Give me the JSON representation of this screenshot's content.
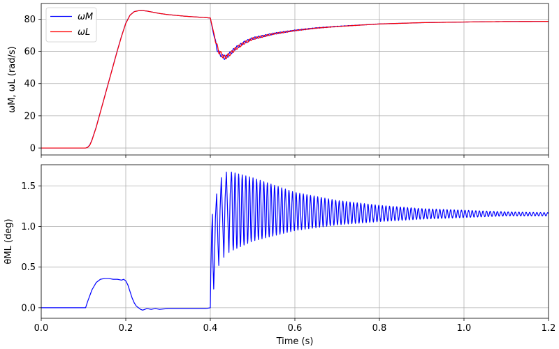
{
  "colors": {
    "omega_M": "#0000ff",
    "omega_L": "#ff0000",
    "theta_ML": "#0000ff",
    "grid": "#b0b0b0"
  },
  "chart_data": [
    {
      "type": "line",
      "ylabel": "ωM, ωL (rad/s)",
      "xlabel": "",
      "xlim": [
        0.0,
        1.2
      ],
      "ylim": [
        -4.3,
        89.7
      ],
      "xticks": [
        0.0,
        0.2,
        0.4,
        0.6,
        0.8,
        1.0,
        1.2
      ],
      "yticks": [
        0,
        20,
        40,
        60,
        80
      ],
      "ytick_labels": [
        "0",
        "20",
        "40",
        "60",
        "80"
      ],
      "grid": true,
      "legend_position": "top-left",
      "series": [
        {
          "name": "ωM",
          "color": "#0000ff",
          "x": [
            0.0,
            0.105,
            0.11,
            0.115,
            0.12,
            0.13,
            0.14,
            0.15,
            0.16,
            0.17,
            0.18,
            0.19,
            0.2,
            0.21,
            0.22,
            0.23,
            0.24,
            0.25,
            0.26,
            0.28,
            0.3,
            0.34,
            0.38,
            0.4,
            0.405,
            0.41,
            0.415,
            0.42,
            0.425,
            0.43,
            0.435,
            0.44,
            0.45,
            0.46,
            0.48,
            0.5,
            0.55,
            0.6,
            0.65,
            0.7,
            0.8,
            0.9,
            1.0,
            1.1,
            1.2
          ],
          "y": [
            0.0,
            0.0,
            0.5,
            2.0,
            5.0,
            13.0,
            22.5,
            32.0,
            41.5,
            51.0,
            60.5,
            69.5,
            77.5,
            82.5,
            84.7,
            85.2,
            85.3,
            85.0,
            84.5,
            83.5,
            82.8,
            81.8,
            81.1,
            80.7,
            74.0,
            68.0,
            62.5,
            59.0,
            58.0,
            56.5,
            56.0,
            57.0,
            59.5,
            62.0,
            65.5,
            68.0,
            71.0,
            73.0,
            74.5,
            75.5,
            77.0,
            77.8,
            78.2,
            78.5,
            78.6
          ]
        },
        {
          "name": "ωL",
          "color": "#ff0000",
          "x": [
            0.0,
            0.105,
            0.11,
            0.115,
            0.12,
            0.13,
            0.14,
            0.15,
            0.16,
            0.17,
            0.18,
            0.19,
            0.2,
            0.21,
            0.22,
            0.23,
            0.24,
            0.25,
            0.26,
            0.28,
            0.3,
            0.34,
            0.38,
            0.4,
            0.405,
            0.41,
            0.415,
            0.42,
            0.425,
            0.43,
            0.435,
            0.44,
            0.45,
            0.46,
            0.48,
            0.5,
            0.55,
            0.6,
            0.65,
            0.7,
            0.8,
            0.9,
            1.0,
            1.1,
            1.2
          ],
          "y": [
            0.0,
            0.0,
            0.4,
            1.8,
            4.8,
            12.8,
            22.3,
            31.8,
            41.3,
            50.8,
            60.3,
            69.3,
            77.3,
            82.4,
            84.6,
            85.2,
            85.3,
            85.0,
            84.5,
            83.5,
            82.8,
            81.8,
            81.1,
            80.7,
            75.0,
            69.5,
            64.0,
            60.0,
            58.5,
            57.0,
            56.2,
            57.0,
            59.2,
            61.7,
            65.2,
            67.8,
            70.9,
            72.9,
            74.4,
            75.4,
            77.0,
            77.8,
            78.2,
            78.5,
            78.6
          ]
        }
      ]
    },
    {
      "type": "line",
      "ylabel": "θML (deg)",
      "xlabel": "Time (s)",
      "xlim": [
        0.0,
        1.2
      ],
      "ylim": [
        -0.13,
        1.76
      ],
      "xticks": [
        0.0,
        0.2,
        0.4,
        0.6,
        0.8,
        1.0,
        1.2
      ],
      "xtick_labels": [
        "0.0",
        "0.2",
        "0.4",
        "0.6",
        "0.8",
        "1.0",
        "1.2"
      ],
      "yticks": [
        0.0,
        0.5,
        1.0,
        1.5
      ],
      "ytick_labels": [
        "0.0",
        "0.5",
        "1.0",
        "1.5"
      ],
      "grid": true,
      "series": [
        {
          "name": "θML",
          "color": "#0000ff",
          "x": [
            0.0,
            0.105,
            0.11,
            0.12,
            0.13,
            0.14,
            0.15,
            0.16,
            0.17,
            0.18,
            0.19,
            0.195,
            0.2,
            0.205,
            0.21,
            0.215,
            0.22,
            0.225,
            0.23,
            0.235,
            0.24,
            0.245,
            0.25,
            0.26,
            0.27,
            0.28,
            0.3,
            0.33,
            0.36,
            0.39,
            0.4,
            0.401,
            0.403,
            0.405,
            0.406,
            0.408,
            0.41,
            0.412,
            0.415,
            0.418,
            0.42,
            0.423,
            0.426,
            0.429,
            0.432,
            0.435,
            0.438,
            0.441,
            0.444,
            0.447,
            0.45
          ],
          "y": [
            0.0,
            0.0,
            0.08,
            0.22,
            0.31,
            0.35,
            0.36,
            0.36,
            0.35,
            0.35,
            0.34,
            0.35,
            0.33,
            0.28,
            0.2,
            0.12,
            0.06,
            0.02,
            0.0,
            -0.02,
            -0.03,
            -0.02,
            -0.01,
            -0.02,
            -0.01,
            -0.02,
            -0.01,
            -0.01,
            -0.01,
            -0.01,
            0.0,
            0.4,
            0.9,
            1.15,
            0.6,
            0.23,
            0.6,
            1.1,
            1.4,
            0.8,
            0.52,
            1.2,
            1.6,
            1.1,
            0.62,
            1.35,
            1.67,
            1.15,
            0.68,
            1.4,
            1.67
          ],
          "oscillation_envelope": {
            "t_start": 0.45,
            "t_end": 1.2,
            "period": 0.0085,
            "upper": [
              [
                0.45,
                1.67
              ],
              [
                0.5,
                1.6
              ],
              [
                0.6,
                1.42
              ],
              [
                0.7,
                1.32
              ],
              [
                0.8,
                1.26
              ],
              [
                0.9,
                1.22
              ],
              [
                1.0,
                1.2
              ],
              [
                1.1,
                1.18
              ],
              [
                1.2,
                1.17
              ]
            ],
            "lower": [
              [
                0.45,
                0.7
              ],
              [
                0.5,
                0.82
              ],
              [
                0.6,
                0.95
              ],
              [
                0.7,
                1.02
              ],
              [
                0.8,
                1.06
              ],
              [
                0.9,
                1.09
              ],
              [
                1.0,
                1.11
              ],
              [
                1.1,
                1.13
              ],
              [
                1.2,
                1.13
              ]
            ]
          }
        }
      ]
    }
  ]
}
